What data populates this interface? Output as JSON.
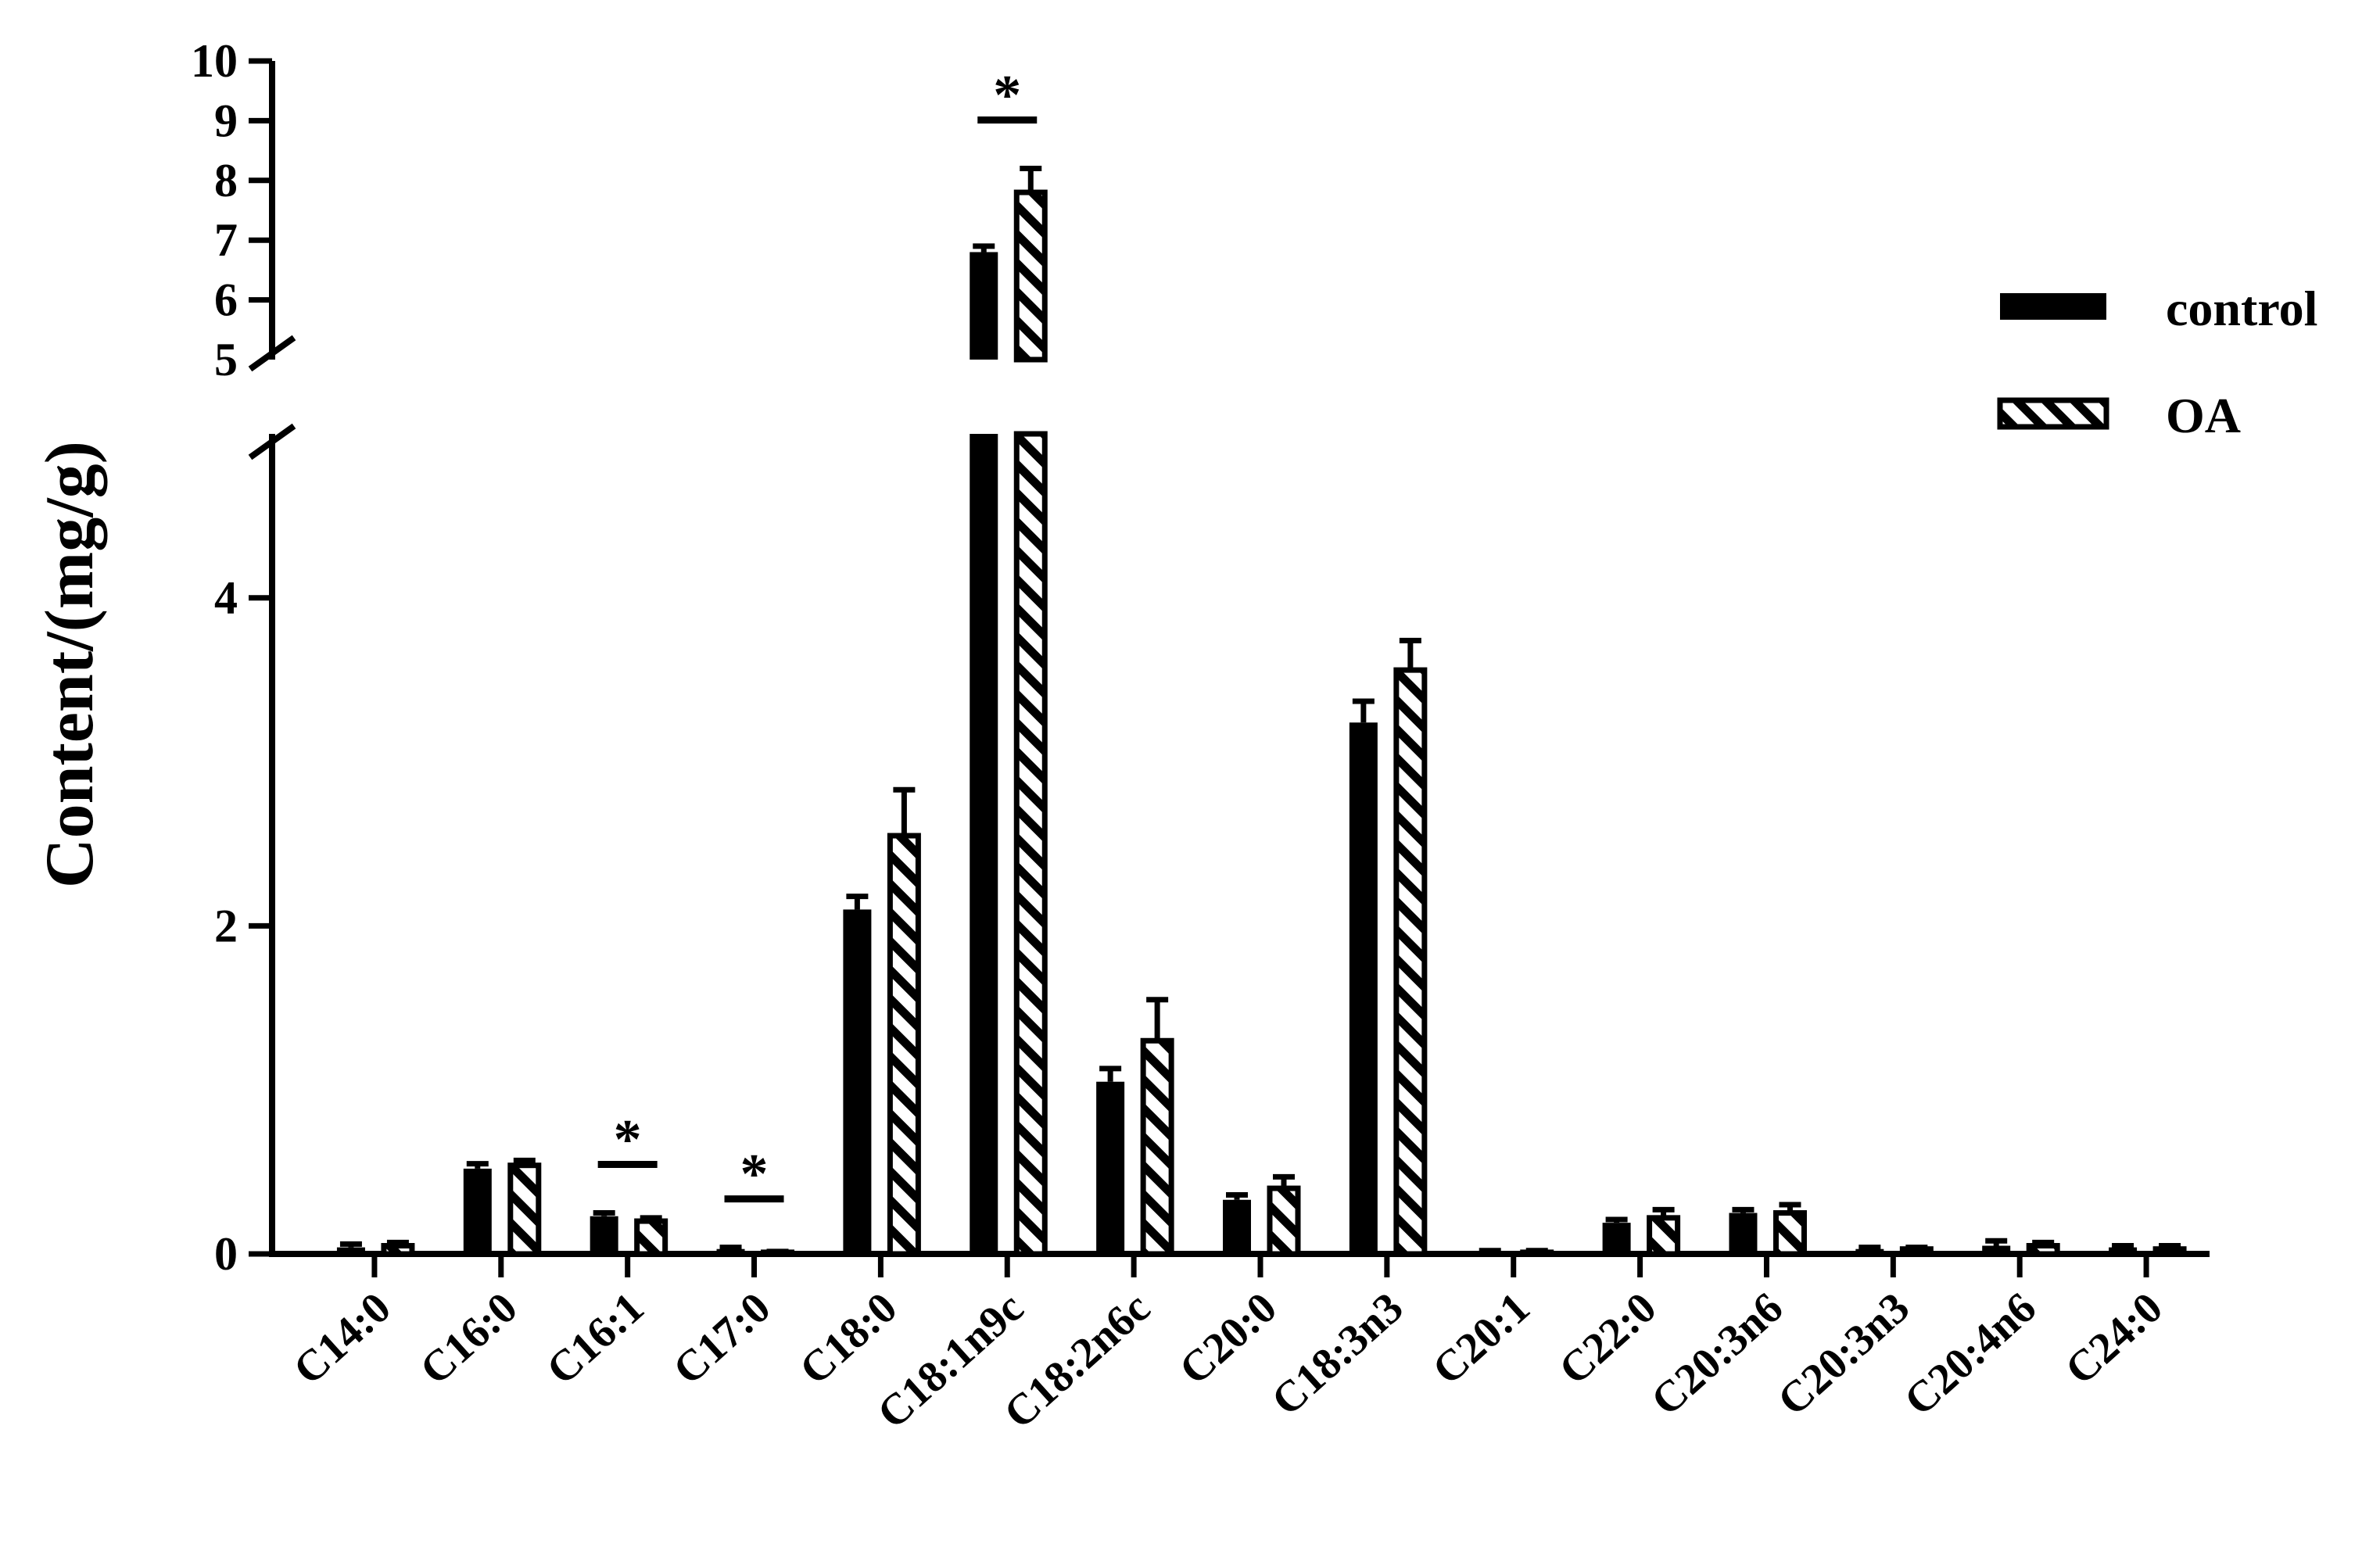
{
  "chart_data": {
    "type": "bar",
    "ylabel": "Content/(mg/g)",
    "xlabel": "",
    "categories": [
      "C14:0",
      "C16:0",
      "C16:1",
      "C17:0",
      "C18:0",
      "C18:1n9c",
      "C18:2n6c",
      "C20:0",
      "C18:3n3",
      "C20:1",
      "C22:0",
      "C20:3n6",
      "C20:3n3",
      "C20:4n6",
      "C24:0"
    ],
    "series": [
      {
        "name": "control",
        "color": "#000000",
        "pattern": "solid",
        "values": [
          0.04,
          0.52,
          0.23,
          0.03,
          2.1,
          6.8,
          1.05,
          0.33,
          3.24,
          0.01,
          0.19,
          0.25,
          0.03,
          0.05,
          0.04
        ],
        "errors": [
          0.02,
          0.03,
          0.02,
          0.01,
          0.08,
          0.1,
          0.08,
          0.03,
          0.13,
          0.01,
          0.02,
          0.02,
          0.01,
          0.03,
          0.01
        ]
      },
      {
        "name": "OA",
        "color": "#000000",
        "pattern": "hatched",
        "values": [
          0.05,
          0.54,
          0.2,
          0.01,
          2.55,
          7.8,
          1.3,
          0.4,
          3.56,
          0.01,
          0.22,
          0.25,
          0.03,
          0.05,
          0.03
        ],
        "errors": [
          0.02,
          0.03,
          0.02,
          0.005,
          0.28,
          0.4,
          0.25,
          0.07,
          0.18,
          0.01,
          0.05,
          0.05,
          0.01,
          0.02,
          0.02
        ]
      }
    ],
    "significance": [
      {
        "category": "C16:1",
        "label": "*"
      },
      {
        "category": "C17:0",
        "label": "*"
      },
      {
        "category": "C18:1n9c",
        "label": "*"
      }
    ],
    "y_axis": {
      "broken": true,
      "lower_range": [
        0,
        5
      ],
      "lower_ticks": [
        {
          "value": 0,
          "label": "0"
        },
        {
          "value": 2,
          "label": "2"
        },
        {
          "value": 4,
          "label": "4"
        }
      ],
      "upper_range": [
        5,
        10
      ],
      "upper_ticks": [
        {
          "value": 5,
          "label": "5"
        },
        {
          "value": 6,
          "label": "6"
        },
        {
          "value": 7,
          "label": "7"
        },
        {
          "value": 8,
          "label": "8"
        },
        {
          "value": 9,
          "label": "9"
        },
        {
          "value": 10,
          "label": "10"
        }
      ]
    },
    "legend": {
      "position": "top-right",
      "entries": [
        {
          "label": "control",
          "pattern": "solid"
        },
        {
          "label": "OA",
          "pattern": "hatched"
        }
      ]
    },
    "grid": false
  }
}
